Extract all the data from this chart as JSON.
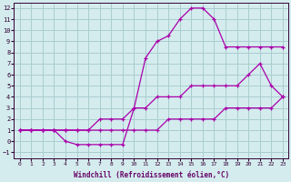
{
  "xlabel": "Windchill (Refroidissement éolien,°C)",
  "background_color": "#d4ecee",
  "grid_color": "#aacdd0",
  "line_color": "#aa00aa",
  "xlim": [
    -0.5,
    23.5
  ],
  "ylim": [
    -1.5,
    12.5
  ],
  "xticks": [
    0,
    1,
    2,
    3,
    4,
    5,
    6,
    7,
    8,
    9,
    10,
    11,
    12,
    13,
    14,
    15,
    16,
    17,
    18,
    19,
    20,
    21,
    22,
    23
  ],
  "yticks": [
    -1,
    0,
    1,
    2,
    3,
    4,
    5,
    6,
    7,
    8,
    9,
    10,
    11,
    12
  ],
  "series": [
    {
      "x": [
        0,
        1,
        2,
        3,
        4,
        5,
        6,
        7,
        8,
        9,
        10,
        11,
        12,
        13,
        14,
        15,
        16,
        17,
        18,
        19,
        20,
        21,
        22,
        23
      ],
      "y": [
        1,
        1,
        1,
        1,
        1,
        1,
        1,
        1,
        1,
        1,
        1,
        1,
        1,
        2,
        2,
        2,
        2,
        2,
        3,
        3,
        3,
        3,
        3,
        4
      ]
    },
    {
      "x": [
        0,
        1,
        2,
        3,
        4,
        5,
        6,
        7,
        8,
        9,
        10,
        11,
        12,
        13,
        14,
        15,
        16,
        17,
        18,
        19,
        20,
        21,
        22,
        23
      ],
      "y": [
        1,
        1,
        1,
        1,
        1,
        1,
        1,
        2,
        2,
        2,
        3,
        3,
        4,
        4,
        4,
        5,
        5,
        5,
        5,
        5,
        6,
        7,
        5,
        4
      ]
    },
    {
      "x": [
        0,
        1,
        2,
        3,
        4,
        5,
        6,
        7,
        8,
        9,
        10,
        11,
        12,
        13,
        14,
        15,
        16,
        17,
        18,
        19,
        20,
        21,
        22,
        23
      ],
      "y": [
        1,
        1,
        1,
        1,
        0,
        -0.3,
        -0.3,
        -0.3,
        -0.3,
        -0.3,
        3,
        7.5,
        9,
        9.5,
        11,
        12,
        12,
        11,
        8.5,
        8.5,
        8.5,
        8.5,
        8.5,
        8.5
      ]
    }
  ]
}
